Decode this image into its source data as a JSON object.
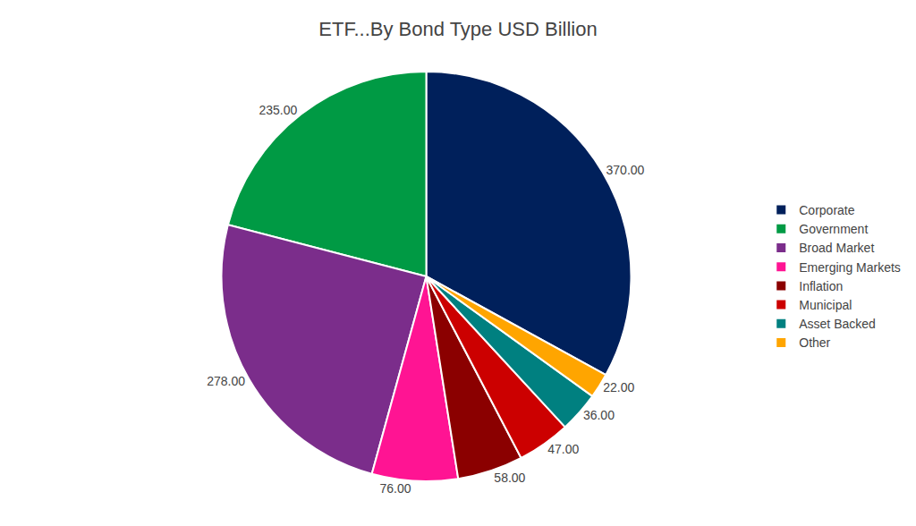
{
  "chart_data": {
    "type": "pie",
    "title": "ETF...By Bond Type USD Billion",
    "categories": [
      "Corporate",
      "Government",
      "Broad Market",
      "Emerging Markets",
      "Inflation",
      "Municipal",
      "Asset Backed",
      "Other"
    ],
    "values": [
      370,
      235,
      278,
      76,
      58,
      47,
      36,
      22
    ],
    "value_labels": [
      "370.00",
      "235.00",
      "278.00",
      "76.00",
      "58.00",
      "47.00",
      "36.00",
      "22.00"
    ],
    "colors": [
      "#00205B",
      "#009A44",
      "#7B2D8B",
      "#FF1493",
      "#8B0000",
      "#CC0000",
      "#008080",
      "#FFA500"
    ],
    "data_labels": true,
    "legend": "right"
  }
}
